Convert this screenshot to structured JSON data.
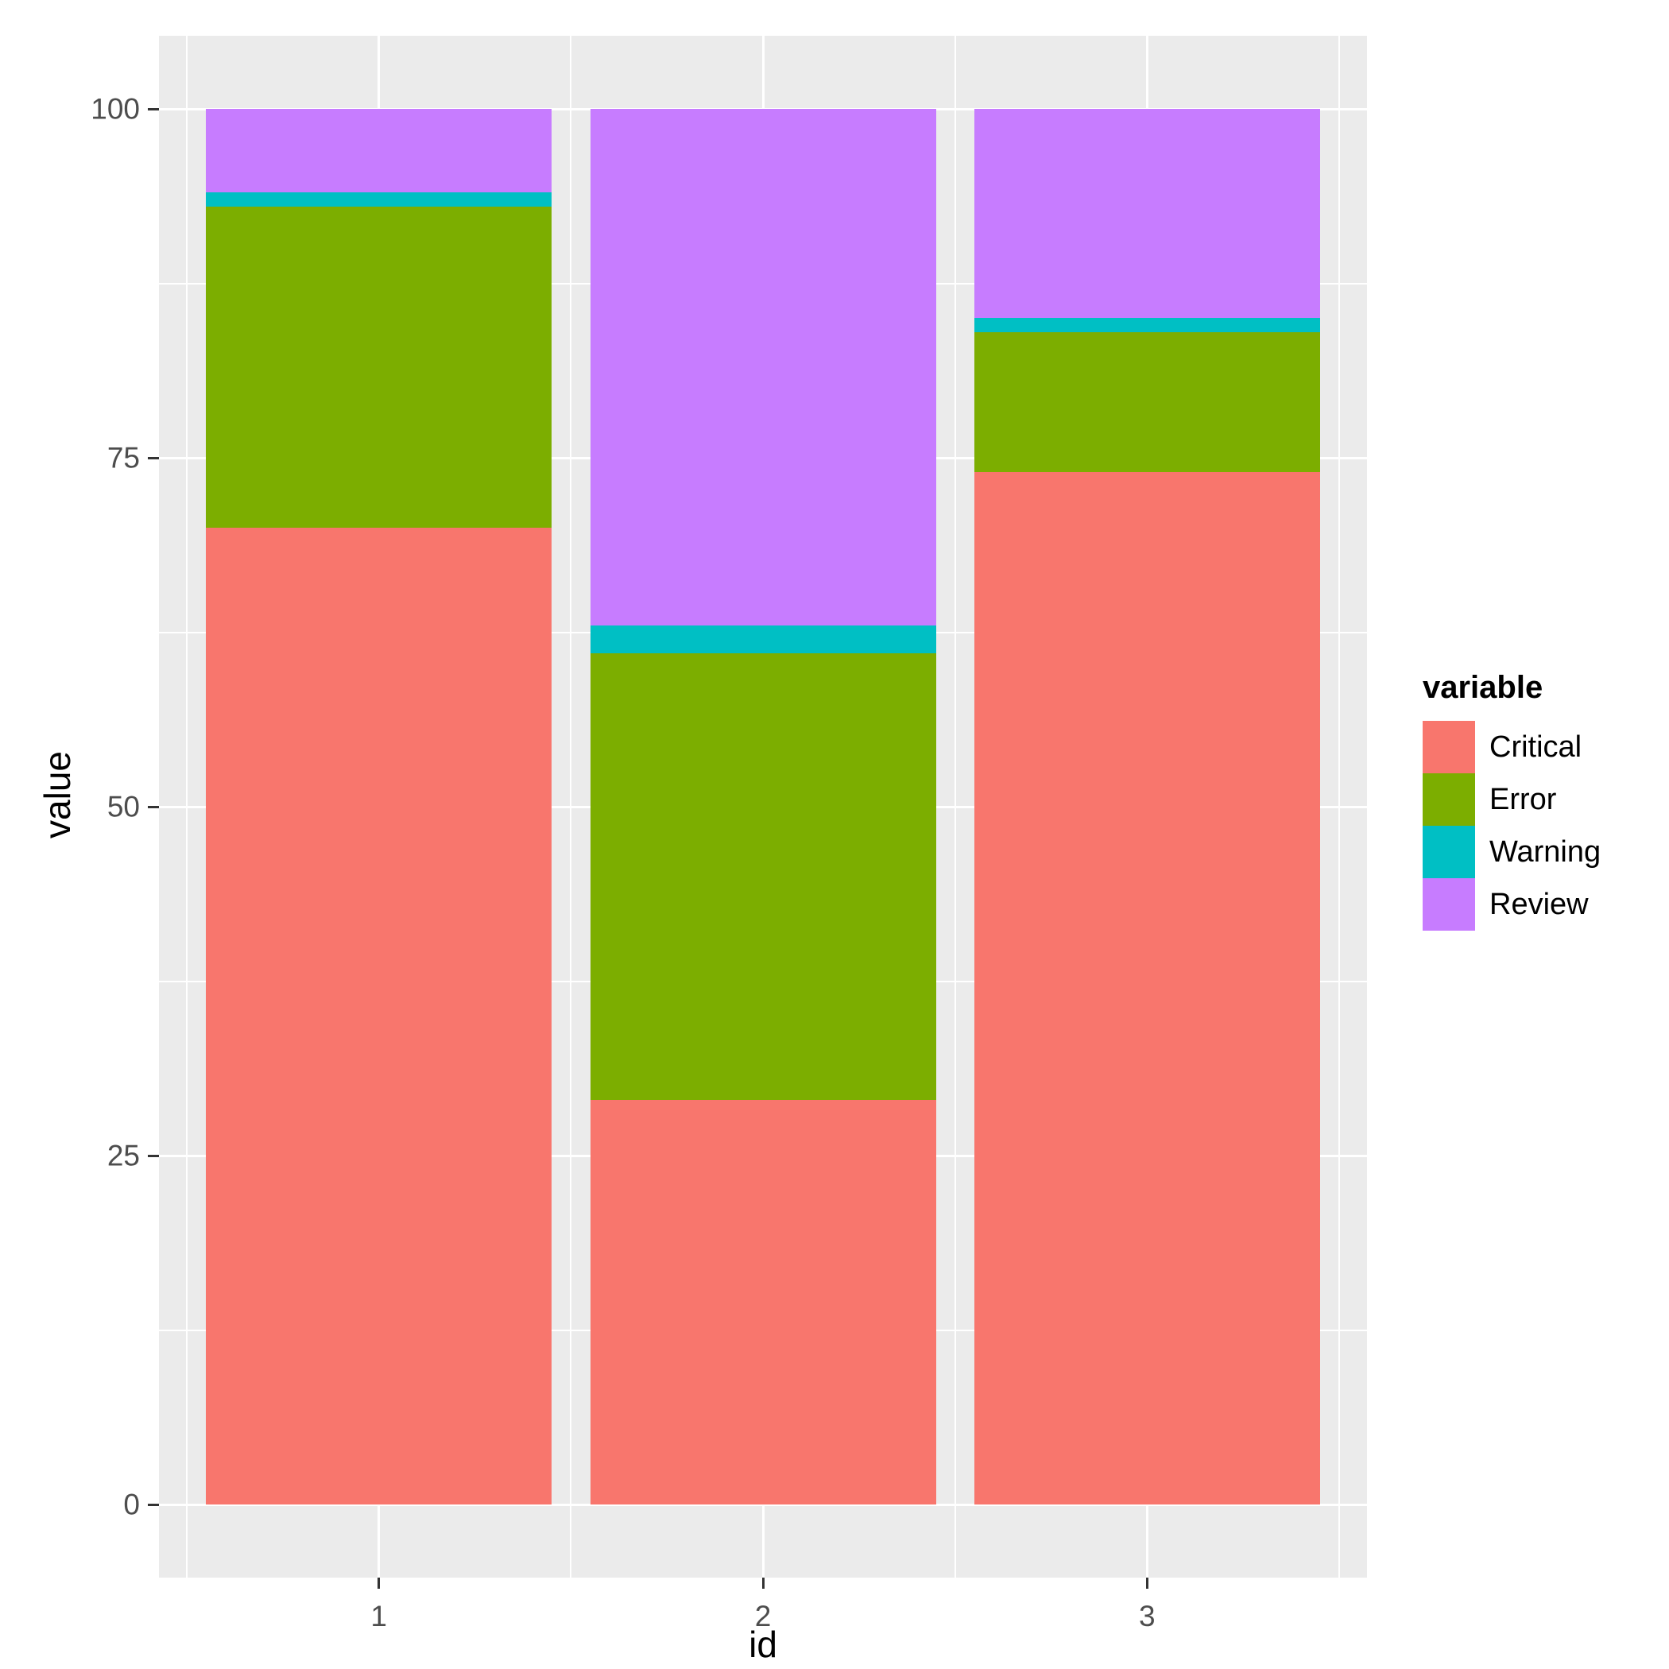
{
  "chart_data": {
    "type": "bar",
    "stacking": "stacked",
    "title": "",
    "xlabel": "id",
    "ylabel": "value",
    "categories": [
      "1",
      "2",
      "3"
    ],
    "series": [
      {
        "name": "Critical",
        "color": "#F8766D",
        "values": [
          70,
          29,
          74
        ]
      },
      {
        "name": "Error",
        "color": "#7CAE00",
        "values": [
          23,
          32,
          10
        ]
      },
      {
        "name": "Warning",
        "color": "#00BFC4",
        "values": [
          1,
          2,
          1
        ]
      },
      {
        "name": "Review",
        "color": "#C77CFF",
        "values": [
          6,
          37,
          15
        ]
      }
    ],
    "ylim": [
      0,
      100
    ],
    "yticks": [
      0,
      25,
      50,
      75,
      100
    ],
    "yticks_minor": [
      12.5,
      37.5,
      62.5,
      87.5
    ],
    "legend_title": "variable",
    "legend_position": "right",
    "grid": "major+minor",
    "panel_background": "#EBEBEB",
    "gridline_color": "#FFFFFF",
    "tick_label_color": "#4D4D4D",
    "bar_width_fraction": 0.9
  }
}
